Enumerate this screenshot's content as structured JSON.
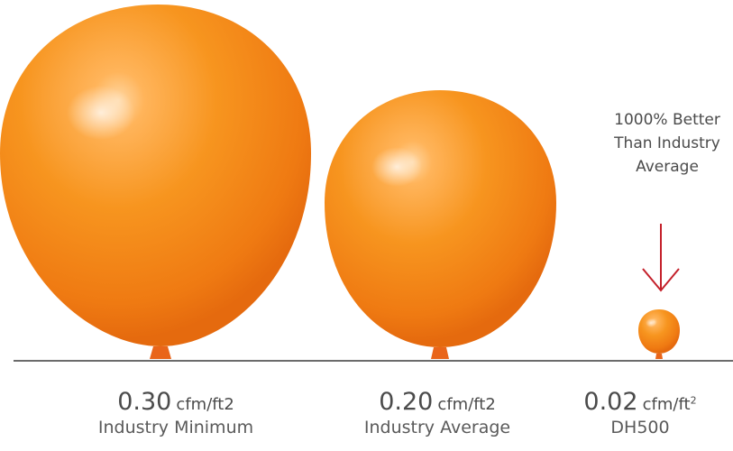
{
  "callout": {
    "lines": [
      "1000% Better",
      "Than Industry",
      "Average"
    ]
  },
  "items": [
    {
      "value": "0.30",
      "unit": "cfm/ft2",
      "name": "Industry Minimum"
    },
    {
      "value": "0.20",
      "unit": "cfm/ft2",
      "name": "Industry Average"
    },
    {
      "value": "0.02",
      "unit": "cfm/ft",
      "unit_sup": "2",
      "name": "DH500"
    }
  ],
  "colors": {
    "balloon": "#f5901e",
    "balloon_dark": "#e86e10",
    "arrow": "#c4202a",
    "baseline": "#6b6b6b",
    "text": "#4b4b4b"
  }
}
